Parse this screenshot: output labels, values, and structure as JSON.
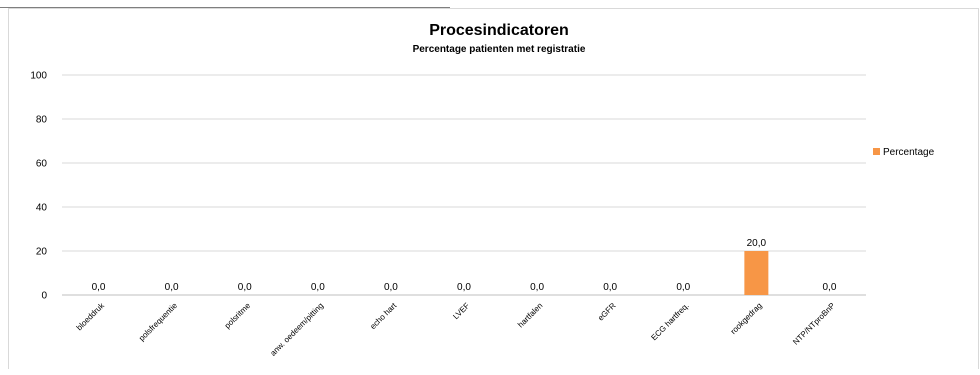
{
  "chart_data": {
    "type": "bar",
    "title": "Procesindicatoren",
    "subtitle": "Percentage patienten met registratie",
    "categories": [
      "bloeddruk",
      "polsfrequentie",
      "polsritme",
      "anw. oedeem/pitting",
      "echo hart",
      "LVEF",
      "hartfalen",
      "eGFR",
      "ECG hartfreq.",
      "rookgedrag",
      "NTP/NTproBnP"
    ],
    "series": [
      {
        "name": "Percentage",
        "values": [
          0,
          0,
          0,
          0,
          0,
          0,
          0,
          0,
          0,
          20,
          0
        ]
      }
    ],
    "data_labels": [
      "0,0",
      "0,0",
      "0,0",
      "0,0",
      "0,0",
      "0,0",
      "0,0",
      "0,0",
      "0,0",
      "20,0",
      "0,0"
    ],
    "ylim": [
      0,
      100
    ],
    "yticks": [
      0,
      20,
      40,
      60,
      80,
      100
    ],
    "grid": true,
    "legend": "right",
    "bar_color": "#f79646"
  }
}
